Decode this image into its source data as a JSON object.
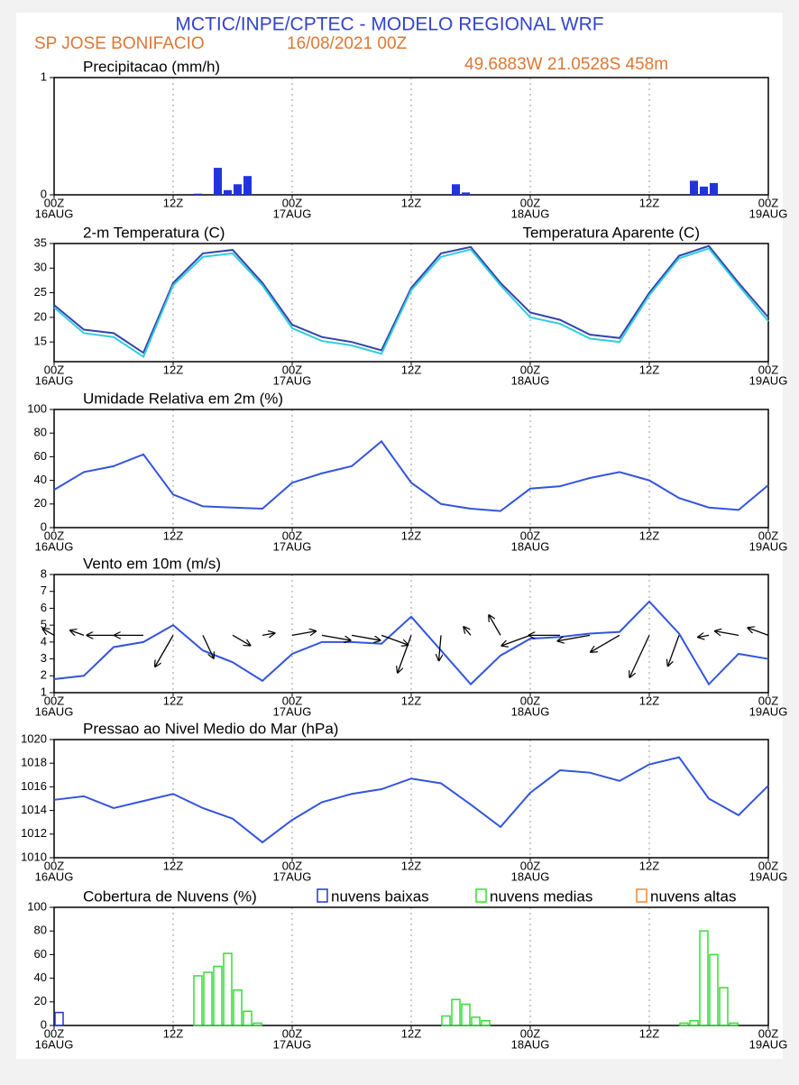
{
  "header": {
    "title": "MCTIC/INPE/CPTEC - MODELO REGIONAL WRF",
    "location": "SP JOSE BONIFACIO",
    "date": "16/08/2021 00Z",
    "coordinates": "49.6883W 21.0528S 458m"
  },
  "time_axis": {
    "xlim": [
      0,
      72
    ],
    "xticks": [
      {
        "value": 0,
        "label": "00Z"
      },
      {
        "value": 12,
        "label": "12Z"
      },
      {
        "value": 24,
        "label": "00Z"
      },
      {
        "value": 36,
        "label": "12Z"
      },
      {
        "value": 48,
        "label": "00Z"
      },
      {
        "value": 60,
        "label": "12Z"
      },
      {
        "value": 72,
        "label": "00Z"
      }
    ],
    "dates": [
      {
        "value": 0,
        "label": "16AUG"
      },
      {
        "value": 24,
        "label": "17AUG"
      },
      {
        "value": 48,
        "label": "18AUG"
      },
      {
        "value": 72,
        "label": "19AUG"
      }
    ]
  },
  "chart_data": [
    {
      "type": "bar",
      "title": "Precipitacao (mm/h)",
      "color": "#2233dd",
      "x": [
        14,
        16,
        17,
        18,
        19,
        40,
        41,
        64,
        65,
        66
      ],
      "values": [
        0.01,
        0.23,
        0.04,
        0.09,
        0.16,
        0.09,
        0.02,
        0.12,
        0.07,
        0.1
      ],
      "ylim": [
        0,
        1
      ],
      "yticks": [
        0,
        1
      ]
    },
    {
      "type": "line",
      "x": [
        0,
        3,
        6,
        9,
        12,
        15,
        18,
        21,
        24,
        27,
        30,
        33,
        36,
        39,
        42,
        45,
        48,
        51,
        54,
        57,
        60,
        63,
        66,
        69,
        72
      ],
      "series": [
        {
          "name": "2-m Temperatura (C)",
          "color": "#3344aa",
          "values": [
            22.5,
            17.5,
            16.8,
            12.8,
            27,
            33,
            33.7,
            27,
            18.5,
            16,
            15,
            13.3,
            26,
            33,
            34.3,
            27,
            21,
            19.5,
            16.5,
            15.8,
            25,
            32.5,
            34.5,
            27,
            20
          ]
        },
        {
          "name": "Temperatura Aparente (C)",
          "color": "#33ccdd",
          "values": [
            22,
            16.8,
            16,
            12,
            26.5,
            32.3,
            33,
            26.5,
            17.8,
            15.2,
            14.3,
            12.6,
            25.5,
            32.3,
            33.8,
            26.5,
            20,
            18.7,
            15.7,
            15,
            24.5,
            32,
            34,
            26.5,
            19.2
          ]
        }
      ],
      "ylim": [
        11,
        35
      ],
      "yticks": [
        15,
        20,
        25,
        30,
        35
      ]
    },
    {
      "type": "line",
      "x": [
        0,
        3,
        6,
        9,
        12,
        15,
        18,
        21,
        24,
        27,
        30,
        33,
        36,
        39,
        42,
        45,
        48,
        51,
        54,
        57,
        60,
        63,
        66,
        69,
        72
      ],
      "series": [
        {
          "name": "Umidade Relativa em 2m (%)",
          "color": "#3355dd",
          "values": [
            32,
            47,
            52,
            62,
            28,
            18,
            17,
            16,
            38,
            46,
            52,
            73,
            38,
            20,
            16,
            14,
            33,
            35,
            42,
            47,
            40,
            25,
            17,
            15,
            36
          ]
        }
      ],
      "ylim": [
        0,
        100
      ],
      "yticks": [
        0,
        20,
        40,
        60,
        80,
        100
      ]
    },
    {
      "type": "wind",
      "title": "Vento em 10m (m/s)",
      "color": "#3355dd",
      "x": [
        0,
        3,
        6,
        9,
        12,
        15,
        18,
        21,
        24,
        27,
        30,
        33,
        36,
        39,
        42,
        45,
        48,
        51,
        54,
        57,
        60,
        63,
        66,
        69,
        72
      ],
      "values": [
        1.8,
        2,
        3.7,
        4,
        5,
        3.5,
        2.8,
        1.7,
        3.3,
        4,
        4,
        3.9,
        5.5,
        3.5,
        1.5,
        3.2,
        4.2,
        4.3,
        4.5,
        4.6,
        6.4,
        4.5,
        1.5,
        3.3,
        3
      ],
      "direction": [
        300,
        290,
        270,
        270,
        210,
        155,
        120,
        80,
        80,
        100,
        100,
        110,
        200,
        185,
        320,
        330,
        250,
        270,
        260,
        240,
        205,
        200,
        260,
        280,
        290
      ],
      "ylim": [
        1,
        8
      ],
      "yticks": [
        1,
        2,
        3,
        4,
        5,
        6,
        7,
        8
      ]
    },
    {
      "type": "line",
      "x": [
        0,
        3,
        6,
        9,
        12,
        15,
        18,
        21,
        24,
        27,
        30,
        33,
        36,
        39,
        42,
        45,
        48,
        51,
        54,
        57,
        60,
        63,
        66,
        69,
        72
      ],
      "series": [
        {
          "name": "Pressao ao Nivel Medio do Mar (hPa)",
          "color": "#3355dd",
          "values": [
            1014.9,
            1015.2,
            1014.2,
            1014.8,
            1015.4,
            1014.2,
            1013.3,
            1011.3,
            1013.2,
            1014.7,
            1015.4,
            1015.8,
            1016.7,
            1016.3,
            1014.5,
            1012.6,
            1015.5,
            1017.4,
            1017.2,
            1016.5,
            1017.9,
            1018.5,
            1015,
            1013.6,
            1016.1
          ]
        }
      ],
      "ylim": [
        1010,
        1020
      ],
      "yticks": [
        1010,
        1012,
        1014,
        1016,
        1018,
        1020
      ]
    },
    {
      "type": "bar",
      "title": "Cobertura de Nuvens (%)",
      "series": [
        {
          "name": "nuvens baixas",
          "color": "#2233dd",
          "x": [
            0
          ],
          "values": [
            11
          ]
        },
        {
          "name": "nuvens medias",
          "color": "#33dd33",
          "x": [
            14,
            15,
            16,
            17,
            18,
            19,
            20,
            39,
            40,
            41,
            42,
            43,
            63,
            64,
            65,
            66,
            67,
            68
          ],
          "values": [
            42,
            45,
            50,
            61,
            30,
            12,
            2,
            8,
            22,
            18,
            7,
            4,
            2,
            4,
            80,
            60,
            32,
            2
          ]
        },
        {
          "name": "nuvens altas",
          "color": "#ee8833",
          "x": [],
          "values": []
        }
      ],
      "ylim": [
        0,
        100
      ],
      "yticks": [
        0,
        20,
        40,
        60,
        80,
        100
      ]
    }
  ]
}
